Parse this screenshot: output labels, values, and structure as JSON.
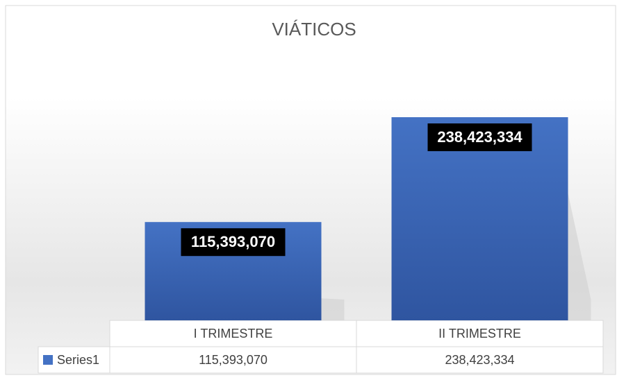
{
  "chart_data": {
    "type": "bar",
    "title": "VIÁTICOS",
    "categories": [
      "I TRIMESTRE",
      "II TRIMESTRE"
    ],
    "series": [
      {
        "name": "Series1",
        "color": "#4472c4",
        "values": [
          115393070,
          238423334
        ],
        "value_labels": [
          "115,393,070",
          "238,423,334"
        ]
      }
    ]
  }
}
